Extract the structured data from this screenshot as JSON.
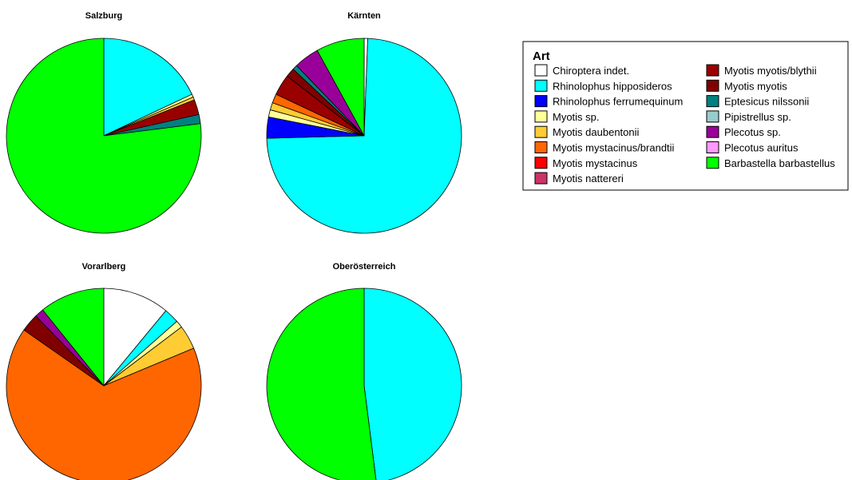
{
  "chart_data": {
    "type": "pie",
    "legend": {
      "title": "Art",
      "placement": "top-right",
      "entries": [
        {
          "name": "Chiroptera indet.",
          "color": "#ffffff"
        },
        {
          "name": "Rhinolophus hipposideros",
          "color": "#00ffff"
        },
        {
          "name": "Rhinolophus ferrumequinum",
          "color": "#0000ff"
        },
        {
          "name": "Myotis sp.",
          "color": "#ffff99"
        },
        {
          "name": "Myotis daubentonii",
          "color": "#ffcc33"
        },
        {
          "name": "Myotis mystacinus/brandtii",
          "color": "#ff6600"
        },
        {
          "name": "Myotis mystacinus",
          "color": "#ff0000"
        },
        {
          "name": "Myotis nattereri",
          "color": "#cc3366"
        },
        {
          "name": "Myotis myotis/blythii",
          "color": "#990000"
        },
        {
          "name": "Myotis myotis",
          "color": "#800000"
        },
        {
          "name": "Eptesicus nilssonii",
          "color": "#008080"
        },
        {
          "name": "Pipistrellus sp.",
          "color": "#99cccc"
        },
        {
          "name": "Plecotus sp.",
          "color": "#990099"
        },
        {
          "name": "Plecotus auritus",
          "color": "#ff99ff"
        },
        {
          "name": "Barbastella barbastellus",
          "color": "#00ff00"
        }
      ]
    },
    "pies": [
      {
        "title": "Salzburg",
        "slices": [
          {
            "name": "Rhinolophus hipposideros",
            "value": 18.0
          },
          {
            "name": "Myotis sp.",
            "value": 0.5
          },
          {
            "name": "Myotis daubentonii",
            "value": 0.5
          },
          {
            "name": "Myotis myotis/blythii",
            "value": 2.5
          },
          {
            "name": "Eptesicus nilssonii",
            "value": 1.5
          },
          {
            "name": "Barbastella barbastellus",
            "value": 77.0
          }
        ]
      },
      {
        "title": "Kärnten",
        "slices": [
          {
            "name": "Chiroptera indet.",
            "value": 0.6
          },
          {
            "name": "Rhinolophus hipposideros",
            "value": 74.0
          },
          {
            "name": "Rhinolophus ferrumequinum",
            "value": 3.5
          },
          {
            "name": "Myotis sp.",
            "value": 1.2
          },
          {
            "name": "Myotis daubentonii",
            "value": 1.2
          },
          {
            "name": "Myotis mystacinus/brandtii",
            "value": 1.5
          },
          {
            "name": "Myotis myotis/blythii",
            "value": 3.5
          },
          {
            "name": "Myotis myotis",
            "value": 1.5
          },
          {
            "name": "Eptesicus nilssonii",
            "value": 0.8
          },
          {
            "name": "Plecotus sp.",
            "value": 4.2
          },
          {
            "name": "Barbastella barbastellus",
            "value": 8.0
          }
        ]
      },
      {
        "title": "Vorarlberg",
        "slices": [
          {
            "name": "Chiroptera indet.",
            "value": 11.0
          },
          {
            "name": "Rhinolophus hipposideros",
            "value": 2.5
          },
          {
            "name": "Myotis sp.",
            "value": 1.2
          },
          {
            "name": "Myotis daubentonii",
            "value": 4.0
          },
          {
            "name": "Myotis mystacinus/brandtii",
            "value": 66.0
          },
          {
            "name": "Myotis myotis",
            "value": 3.0
          },
          {
            "name": "Plecotus sp.",
            "value": 1.5
          },
          {
            "name": "Barbastella barbastellus",
            "value": 10.8
          }
        ]
      },
      {
        "title": "Oberösterreich",
        "slices": [
          {
            "name": "Rhinolophus hipposideros",
            "value": 48.0
          },
          {
            "name": "Barbastella barbastellus",
            "value": 52.0
          }
        ]
      }
    ]
  }
}
